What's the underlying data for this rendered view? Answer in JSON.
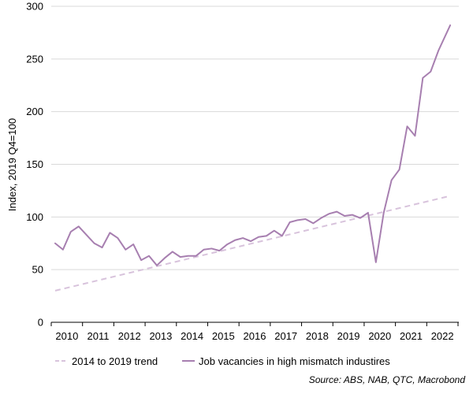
{
  "chart_data": {
    "type": "line",
    "ylabel": "Index, 2019 Q4=100",
    "ylim": [
      0,
      300
    ],
    "yticks": [
      0,
      50,
      100,
      150,
      200,
      250,
      300
    ],
    "xlim": [
      2009.875,
      2022.9
    ],
    "year_labels": [
      "2010",
      "2011",
      "2012",
      "2013",
      "2014",
      "2015",
      "2016",
      "2017",
      "2018",
      "2019",
      "2020",
      "2021",
      "2022"
    ],
    "grid": "horizontal",
    "legend_position": "bottom",
    "source": "Source: ABS, NAB, QTC, Macrobond",
    "series": [
      {
        "name": "2014 to 2019 trend",
        "style": "dashed",
        "color": "#d8c3dc",
        "x": [
          2010.0,
          2022.625
        ],
        "values": [
          30,
          120
        ]
      },
      {
        "name": "Job vacancies in high mismatch industires",
        "style": "solid",
        "color": "#a77fb0",
        "x": [
          2010.0,
          2010.25,
          2010.5,
          2010.75,
          2011.0,
          2011.25,
          2011.5,
          2011.75,
          2012.0,
          2012.25,
          2012.5,
          2012.75,
          2013.0,
          2013.25,
          2013.5,
          2013.75,
          2014.0,
          2014.25,
          2014.5,
          2014.75,
          2015.0,
          2015.25,
          2015.5,
          2015.75,
          2016.0,
          2016.25,
          2016.5,
          2016.75,
          2017.0,
          2017.25,
          2017.5,
          2017.75,
          2018.0,
          2018.25,
          2018.5,
          2018.75,
          2019.0,
          2019.25,
          2019.5,
          2019.75,
          2020.0,
          2020.25,
          2020.5,
          2020.75,
          2021.0,
          2021.25,
          2021.5,
          2021.75,
          2022.0,
          2022.25,
          2022.625
        ],
        "values": [
          75,
          69,
          86,
          91,
          83,
          75,
          71,
          85,
          80,
          69,
          74,
          59,
          63,
          54,
          61,
          67,
          62,
          63,
          63,
          69,
          70,
          68,
          74,
          78,
          80,
          77,
          81,
          82,
          87,
          82,
          95,
          97,
          98,
          94,
          99,
          103,
          105,
          101,
          102,
          99,
          104,
          57,
          104,
          135,
          145,
          186,
          177,
          232,
          238,
          258,
          282
        ]
      }
    ]
  }
}
